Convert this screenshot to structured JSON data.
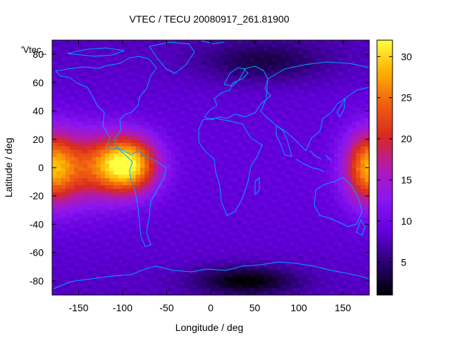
{
  "chart_data": {
    "type": "heatmap",
    "title": "VTEC / TECU 20080917_261.81900",
    "xlabel": "Longitude / deg",
    "ylabel": "Latitude / deg",
    "legend_label": "'Vtec_",
    "xlim": [
      -180,
      180
    ],
    "ylim": [
      -90,
      90
    ],
    "x_ticks": [
      -150,
      -100,
      -50,
      0,
      50,
      100,
      150
    ],
    "y_ticks": [
      -80,
      -60,
      -40,
      -20,
      0,
      20,
      40,
      60,
      80
    ],
    "colorbar": {
      "range": [
        1,
        32
      ],
      "ticks": [
        5,
        10,
        15,
        20,
        25,
        30
      ],
      "palette": [
        "#000000",
        "#2a0070",
        "#6200dd",
        "#8a16f0",
        "#b21ab0",
        "#d82a20",
        "#f06010",
        "#ffb000",
        "#ffff40"
      ]
    },
    "features": {
      "background_level": 8.5,
      "peaks": [
        {
          "name": "equatorial-anomaly-south-america",
          "lon": -95,
          "lat": 2,
          "value": 31
        },
        {
          "name": "equatorial-band-pacific",
          "lon": -150,
          "lat": 0,
          "value": 20
        },
        {
          "name": "equatorial-band-dateline",
          "lon": 178,
          "lat": 0,
          "value": 21
        }
      ],
      "minima": [
        {
          "name": "antarctic-minimum",
          "lon": 40,
          "lat": -80,
          "value": 1.5
        },
        {
          "name": "arctic-asia-minimum",
          "lon": 60,
          "lat": 75,
          "value": 4
        }
      ]
    },
    "overlay": "coastlines",
    "overlay_color": "#00a0ff"
  }
}
